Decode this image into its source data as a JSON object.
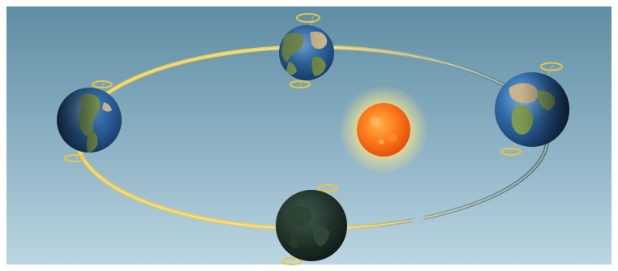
{
  "diagram": {
    "subject": "earth-orbit-around-sun",
    "colors": {
      "sky_top": "#5f8da3",
      "sky_bottom": "#b8d3e0",
      "orbit_lit": "#f2cf4a",
      "orbit_shadow": "#5b7d8f",
      "sun_core": "#ff7a1a",
      "sun_glow": "#fff6a0",
      "ocean": "#2c5f93",
      "land": "#7a8f4a",
      "night": "#1c2a23"
    },
    "earths": [
      {
        "id": "top",
        "phase": "lit-front"
      },
      {
        "id": "right",
        "phase": "lit-front"
      },
      {
        "id": "left",
        "phase": "half-lit"
      },
      {
        "id": "bottom",
        "phase": "dark"
      }
    ]
  }
}
